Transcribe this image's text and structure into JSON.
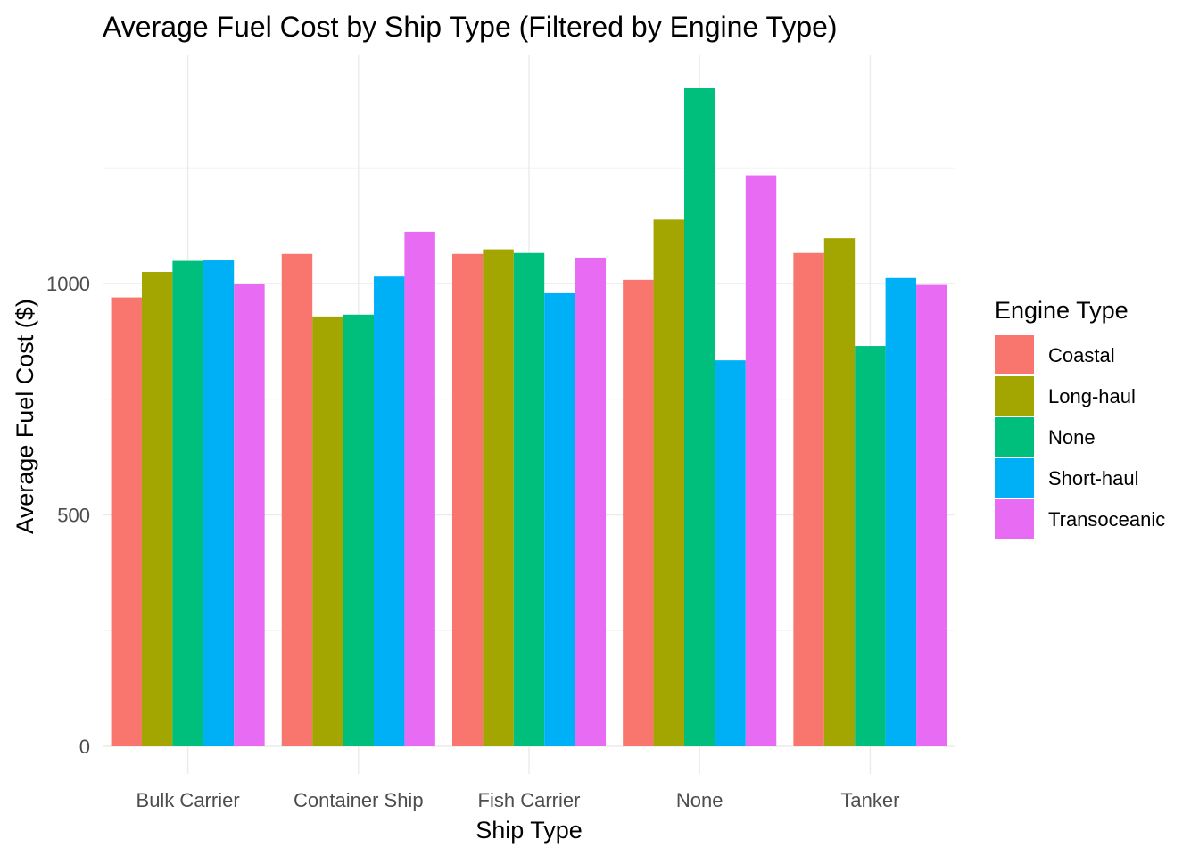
{
  "chart_data": {
    "type": "bar",
    "title": "Average Fuel Cost by Ship Type (Filtered by Engine Type)",
    "xlabel": "Ship Type",
    "ylabel": "Average Fuel Cost ($)",
    "categories": [
      "Bulk Carrier",
      "Container Ship",
      "Fish Carrier",
      "None",
      "Tanker"
    ],
    "ylim": [
      0,
      1500
    ],
    "y_ticks": [
      0,
      500,
      1000
    ],
    "y_tick_labels": [
      "0",
      "500",
      "1000"
    ],
    "grid": true,
    "legend": {
      "title": "Engine Type",
      "placement": "right"
    },
    "series": [
      {
        "name": "Coastal",
        "color": "#F8766D",
        "values": [
          970,
          1064,
          1064,
          1008,
          1066
        ]
      },
      {
        "name": "Long-haul",
        "color": "#A3A500",
        "values": [
          1025,
          929,
          1074,
          1138,
          1098
        ]
      },
      {
        "name": "None",
        "color": "#00BF7D",
        "values": [
          1049,
          933,
          1066,
          1422,
          865
        ]
      },
      {
        "name": "Short-haul",
        "color": "#00B0F6",
        "values": [
          1050,
          1015,
          979,
          834,
          1012
        ]
      },
      {
        "name": "Transoceanic",
        "color": "#E76BF3",
        "values": [
          999,
          1112,
          1056,
          1234,
          997
        ]
      }
    ]
  }
}
